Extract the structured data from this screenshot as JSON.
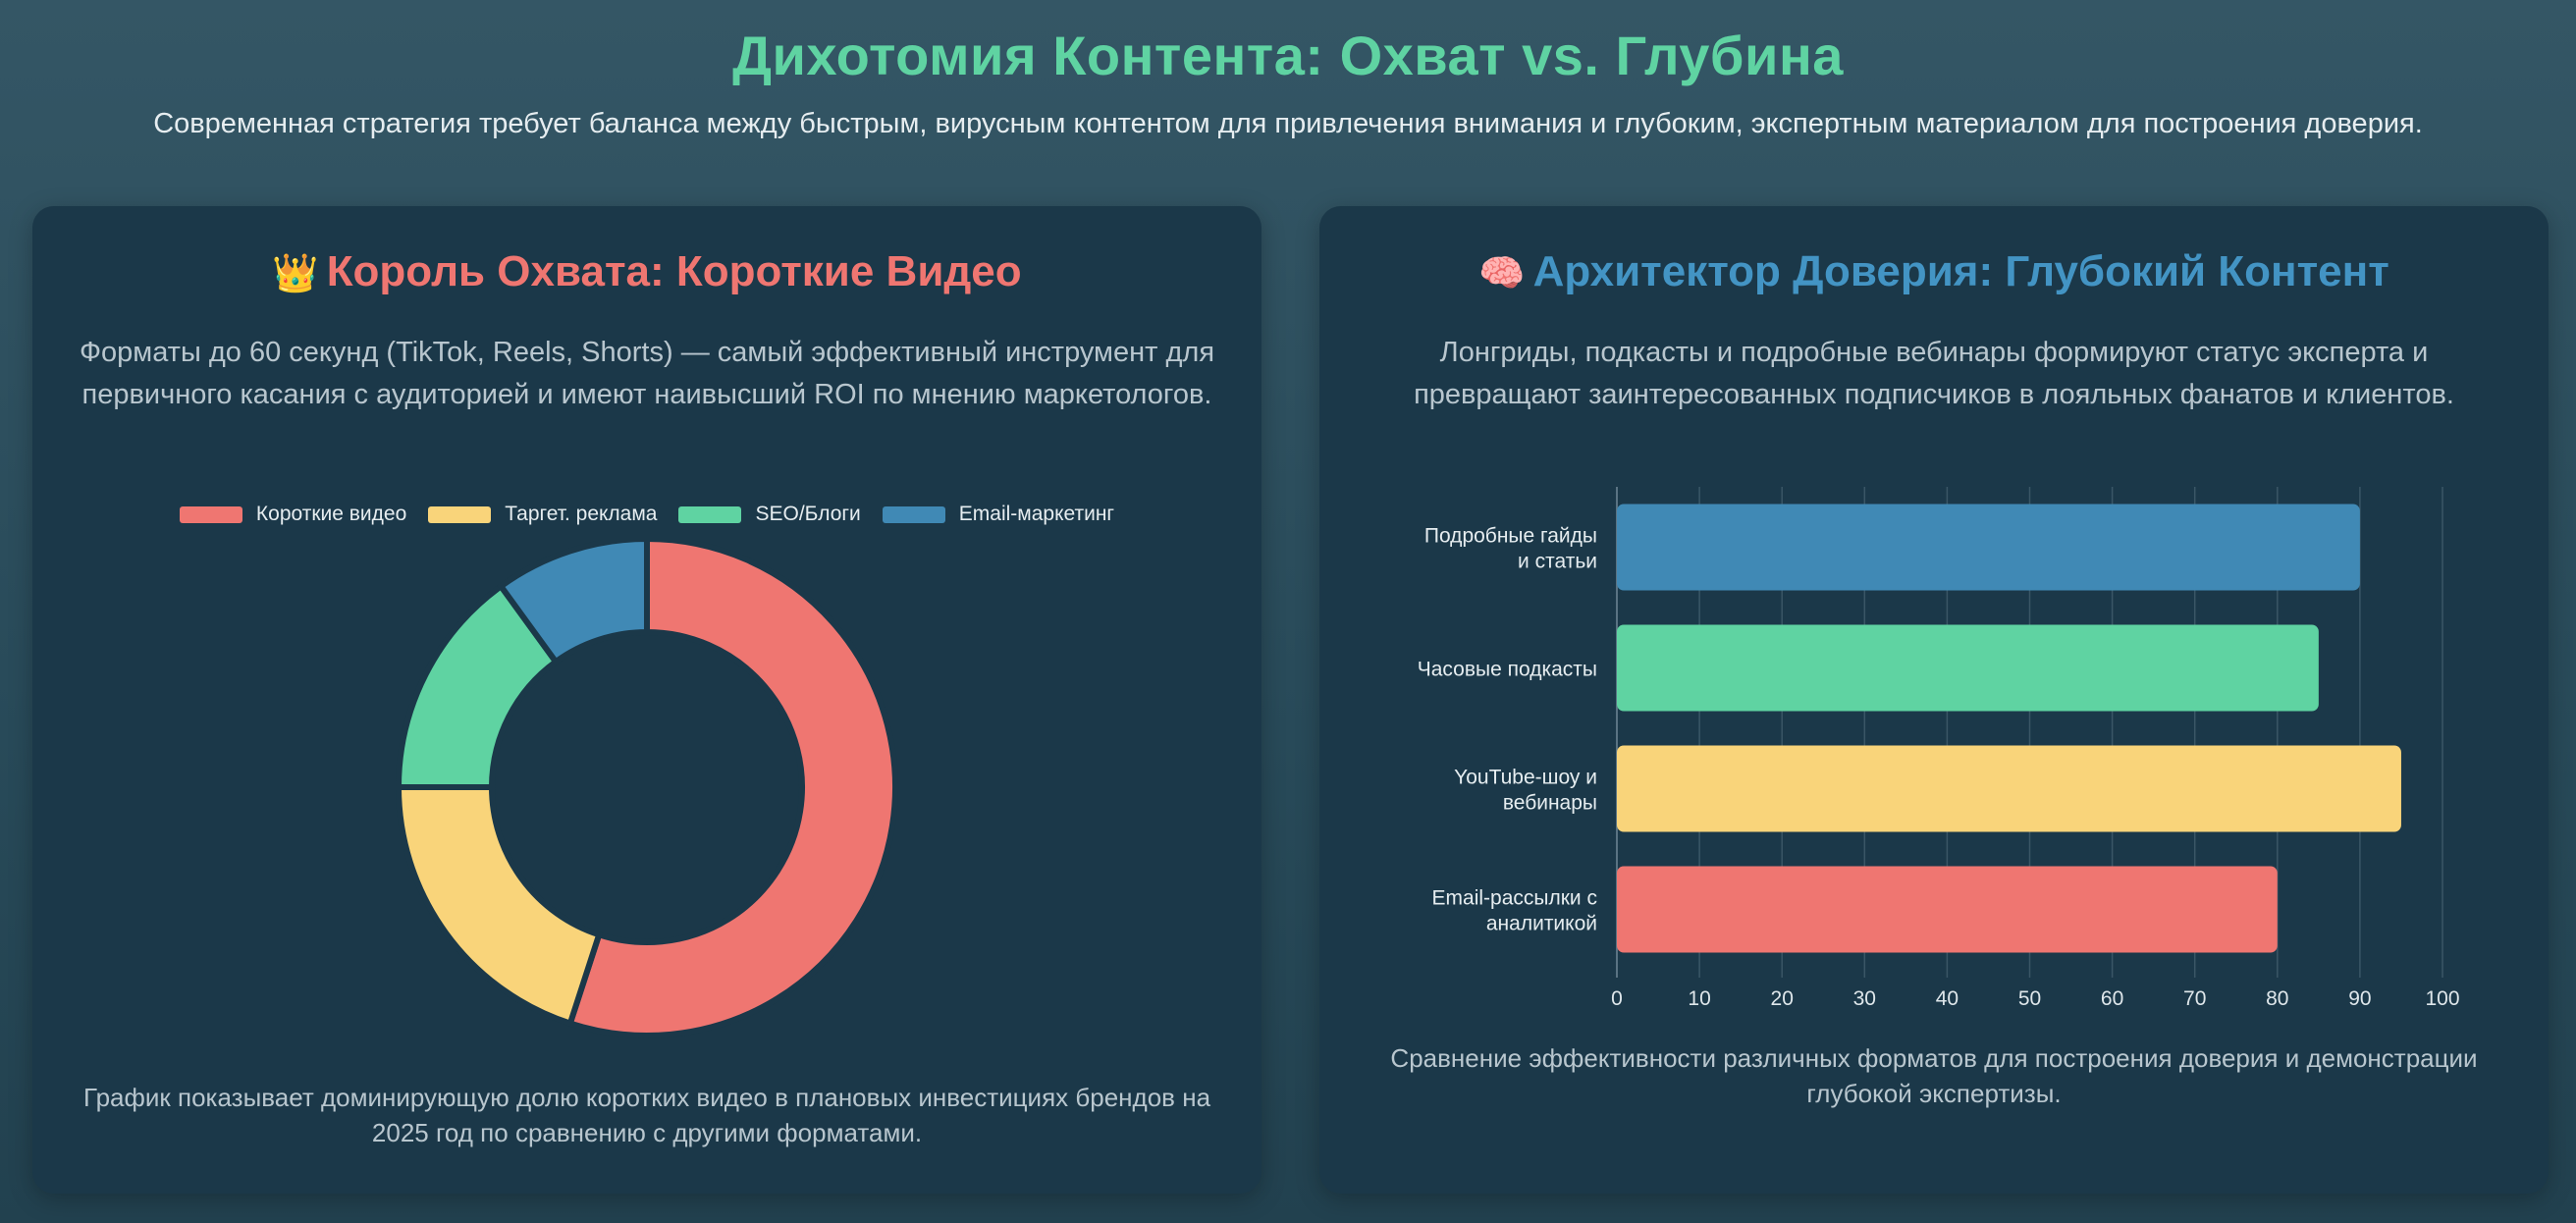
{
  "header": {
    "title": "Дихотомия Контента: Охват vs. Глубина",
    "subtitle": "Современная стратегия требует баланса между быстрым, вирусным контентом для привлечения внимания и глубоким, экспертным материалом для построения доверия."
  },
  "left_card": {
    "emoji": "👑",
    "title": "Король Охвата: Короткие Видео",
    "description": "Форматы до 60 секунд (TikTok, Reels, Shorts) — самый эффективный инструмент для первичного касания с аудиторией и имеют наивысший ROI по мнению маркетологов.",
    "footer": "График показывает доминирующую долю коротких видео в плановых инвестициях брендов на 2025 год по сравнению с другими форматами."
  },
  "right_card": {
    "emoji": "🧠",
    "title": "Архитектор Доверия: Глубокий Контент",
    "description": "Лонгриды, подкасты и подробные вебинары формируют статус эксперта и превращают заинтересованных подписчиков в лояльных фанатов и клиентов.",
    "footer": "Сравнение эффективности различных форматов для построения доверия и демонстрации глубокой экспертизы."
  },
  "chart_data": [
    {
      "type": "pie",
      "variant": "doughnut",
      "categories": [
        "Короткие видео",
        "Таргет. реклама",
        "SEO/Блоги",
        "Email-маркетинг"
      ],
      "values": [
        55,
        20,
        15,
        10
      ],
      "colors": [
        "#ef7671",
        "#f9d47a",
        "#5fd3a2",
        "#4089b5"
      ],
      "legend_position": "top"
    },
    {
      "type": "bar",
      "orientation": "horizontal",
      "categories": [
        [
          "Подробные гайды",
          "и статьи"
        ],
        [
          "Часовые подкасты"
        ],
        [
          "YouTube-шоу и",
          "вебинары"
        ],
        [
          "Email-рассылки с",
          "аналитикой"
        ]
      ],
      "values": [
        90,
        85,
        95,
        80
      ],
      "colors": [
        "#4089b5",
        "#5fd3a2",
        "#f9d47a",
        "#ef7671"
      ],
      "xlim": [
        0,
        100
      ],
      "xticks": [
        0,
        10,
        20,
        30,
        40,
        50,
        60,
        70,
        80,
        90,
        100
      ],
      "grid": true
    }
  ]
}
